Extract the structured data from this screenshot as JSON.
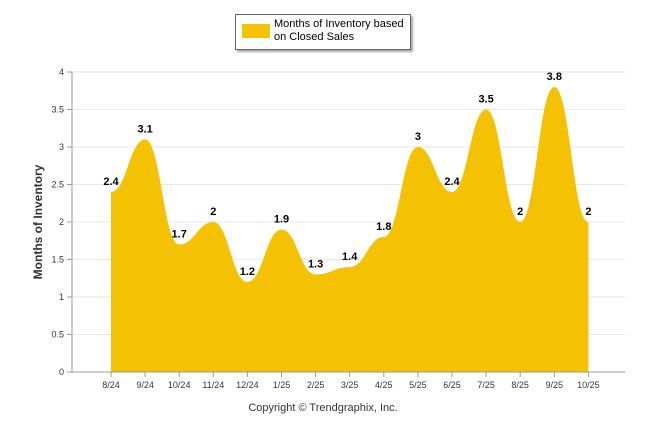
{
  "chart_data": {
    "type": "area",
    "categories": [
      "8/24",
      "9/24",
      "10/24",
      "11/24",
      "12/24",
      "1/25",
      "2/25",
      "3/25",
      "4/25",
      "5/25",
      "6/25",
      "7/25",
      "8/25",
      "9/25",
      "10/25"
    ],
    "series": [
      {
        "name": "Months of Inventory based on Closed Sales",
        "values": [
          2.4,
          3.1,
          1.7,
          2,
          1.2,
          1.9,
          1.3,
          1.4,
          1.8,
          3,
          2.4,
          3.5,
          2,
          3.8,
          2
        ],
        "labels": [
          "2.4",
          "3.1",
          "1.7",
          "2",
          "1.2",
          "1.9",
          "1.3",
          "1.4",
          "1.8",
          "3",
          "2.4",
          "3.5",
          "2",
          "3.8",
          "2"
        ]
      }
    ],
    "ylabel": "Months of Inventory",
    "xlabel": "",
    "ylim": [
      0,
      4
    ],
    "yticks": [
      "0",
      "0.5",
      "1",
      "1.5",
      "2",
      "2.5",
      "3",
      "3.5",
      "4"
    ],
    "ytick_values": [
      0,
      0.5,
      1,
      1.5,
      2,
      2.5,
      3,
      3.5,
      4
    ],
    "grid": true,
    "legend_position": "top-center",
    "colors": {
      "fill": "#F5C203",
      "grid": "#e6e6e6",
      "axis": "#999999"
    }
  },
  "legend": {
    "label": "Months of Inventory based on Closed Sales"
  },
  "footer": {
    "copyright": "Copyright © Trendgraphix, Inc."
  }
}
